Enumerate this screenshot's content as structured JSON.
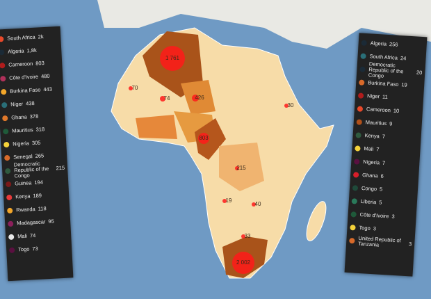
{
  "left_panel": {
    "items": [
      {
        "label": "South Africa",
        "value": "2k",
        "color": "#e8492a"
      },
      {
        "label": "Algeria",
        "value": "1,8k",
        "color": "#1b2a36"
      },
      {
        "label": "Cameroon",
        "value": "803",
        "color": "#b01c1c"
      },
      {
        "label": "Côte d'Ivoire",
        "value": "480",
        "color": "#b0305a"
      },
      {
        "label": "Burkina Faso",
        "value": "443",
        "color": "#f2a62a"
      },
      {
        "label": "Niger",
        "value": "438",
        "color": "#2a6f78"
      },
      {
        "label": "Ghana",
        "value": "378",
        "color": "#e0782a"
      },
      {
        "label": "Mauritius",
        "value": "318",
        "color": "#1f5a3a"
      },
      {
        "label": "Nigeria",
        "value": "305",
        "color": "#f4d23a"
      },
      {
        "label": "Senegal",
        "value": "265",
        "color": "#d86a2a"
      },
      {
        "label": "Democratic Republic of the Congo",
        "value": "215",
        "color": "#2f5a3f"
      },
      {
        "label": "Guinea",
        "value": "194",
        "color": "#7a1a1a"
      },
      {
        "label": "Kenya",
        "value": "189",
        "color": "#e83a3a"
      },
      {
        "label": "Rwanda",
        "value": "118",
        "color": "#f2a62a"
      },
      {
        "label": "Madagascar",
        "value": "95",
        "color": "#8a1f5a"
      },
      {
        "label": "Mali",
        "value": "74",
        "color": "#e8e8e8"
      },
      {
        "label": "Togo",
        "value": "73",
        "color": "#5a1040"
      }
    ]
  },
  "right_panel": {
    "items": [
      {
        "label": "Algeria",
        "value": "256",
        "color": "#1b2a36"
      },
      {
        "label": "South Africa",
        "value": "24",
        "color": "#2a6f78"
      },
      {
        "label": "Democratic Republic of the Congo",
        "value": "20",
        "color": "#1b2a36"
      },
      {
        "label": "Burkina Faso",
        "value": "19",
        "color": "#d86a2a"
      },
      {
        "label": "Niger",
        "value": "11",
        "color": "#b01c1c"
      },
      {
        "label": "Cameroon",
        "value": "10",
        "color": "#e8492a"
      },
      {
        "label": "Mauritius",
        "value": "9",
        "color": "#b0501a"
      },
      {
        "label": "Kenya",
        "value": "7",
        "color": "#2f5a3f"
      },
      {
        "label": "Mali",
        "value": "7",
        "color": "#f4d23a"
      },
      {
        "label": "Nigeria",
        "value": "7",
        "color": "#5a1040"
      },
      {
        "label": "Ghana",
        "value": "6",
        "color": "#d81e2a"
      },
      {
        "label": "Congo",
        "value": "5",
        "color": "#1f4a3a"
      },
      {
        "label": "Liberia",
        "value": "5",
        "color": "#2a7a5a"
      },
      {
        "label": "Côte d'Ivoire",
        "value": "3",
        "color": "#1f5a3a"
      },
      {
        "label": "Togo",
        "value": "3",
        "color": "#f4d23a"
      },
      {
        "label": "United Republic of Tanzania",
        "value": "3",
        "color": "#d86a2a"
      }
    ]
  },
  "map_labels": [
    "1 761",
    "2 002",
    "74",
    "426",
    "70",
    "803",
    "215",
    "30",
    "19",
    "40",
    "33"
  ]
}
